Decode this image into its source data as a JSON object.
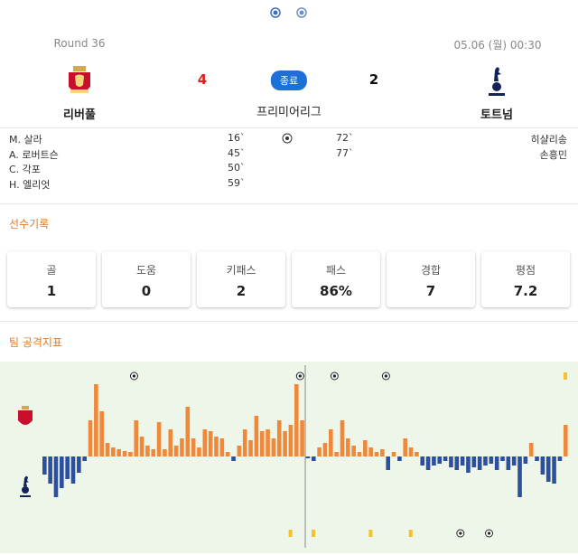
{
  "header": {
    "round": "Round 36",
    "date": "05.06 (월) 00:30"
  },
  "home": {
    "name": "리버풀",
    "score": 4
  },
  "away": {
    "name": "토트넘",
    "score": 2
  },
  "match": {
    "status": "종료",
    "league": "프리미어리그"
  },
  "goals": {
    "home": [
      {
        "player": "M. 살라",
        "minute": 16,
        "label": "16`"
      },
      {
        "player": "A. 로버트슨",
        "minute": 45,
        "label": "45`"
      },
      {
        "player": "C. 각포",
        "minute": 50,
        "label": "50`"
      },
      {
        "player": "H. 엘리엇",
        "minute": 59,
        "label": "59`"
      }
    ],
    "away": [
      {
        "player": "히샬리송",
        "minute": 72,
        "label": "72`"
      },
      {
        "player": "손흥민",
        "minute": 77,
        "label": "77`"
      }
    ]
  },
  "sections": [
    "선수기록",
    "팀 공격지표"
  ],
  "stats": [
    {
      "label": "골",
      "value": "1"
    },
    {
      "label": "도움",
      "value": "0"
    },
    {
      "label": "키패스",
      "value": "2"
    },
    {
      "label": "패스",
      "value": "86%"
    },
    {
      "label": "경합",
      "value": "7"
    },
    {
      "label": "평점",
      "value": "7.2"
    }
  ],
  "chart_data": {
    "type": "bar",
    "ylim": [
      -100,
      100
    ],
    "colors": {
      "home": "#f0883a",
      "away": "#2c4f9e",
      "card": "#f5c02a"
    },
    "cards": {
      "home": [
        90
      ],
      "away": [
        43,
        46,
        56,
        63
      ]
    },
    "values": [
      -20,
      -30,
      -45,
      -35,
      -25,
      -30,
      -18,
      -5,
      40,
      80,
      50,
      15,
      10,
      8,
      6,
      5,
      40,
      22,
      12,
      8,
      38,
      8,
      30,
      12,
      20,
      55,
      20,
      10,
      30,
      28,
      22,
      20,
      5,
      -5,
      12,
      30,
      18,
      45,
      28,
      30,
      20,
      40,
      28,
      35,
      80,
      40,
      -2,
      -5,
      10,
      15,
      30,
      5,
      40,
      20,
      12,
      5,
      18,
      10,
      5,
      8,
      -15,
      5,
      -5,
      20,
      10,
      5,
      -10,
      -15,
      -10,
      -8,
      -5,
      -12,
      -15,
      -10,
      -18,
      -12,
      -15,
      -10,
      -8,
      -15,
      -5,
      -15,
      -10,
      -45,
      -8,
      15,
      -5,
      -20,
      -28,
      -30,
      -5,
      35
    ]
  }
}
